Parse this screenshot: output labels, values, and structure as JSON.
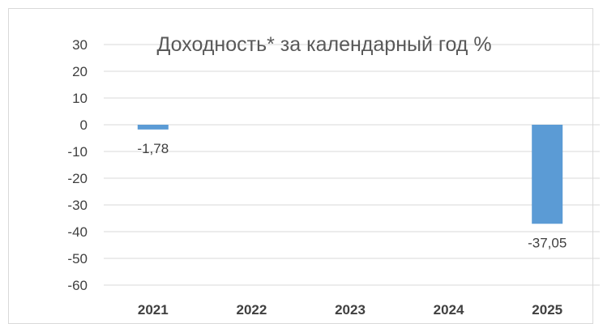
{
  "chart_data": {
    "type": "bar",
    "title": "Доходность* за календарный год %",
    "categories": [
      "2021",
      "2022",
      "2023",
      "2024",
      "2025"
    ],
    "values": [
      -1.78,
      null,
      null,
      null,
      -37.05
    ],
    "data_labels": [
      "-1,78",
      "",
      "",
      "",
      "-37,05"
    ],
    "ylim": [
      -60,
      30
    ],
    "yticks": [
      30,
      20,
      10,
      0,
      -10,
      -20,
      -30,
      -40,
      -50,
      -60
    ],
    "grid": true,
    "bar_color": "#5b9bd5",
    "grid_color": "#d9d9d9"
  }
}
